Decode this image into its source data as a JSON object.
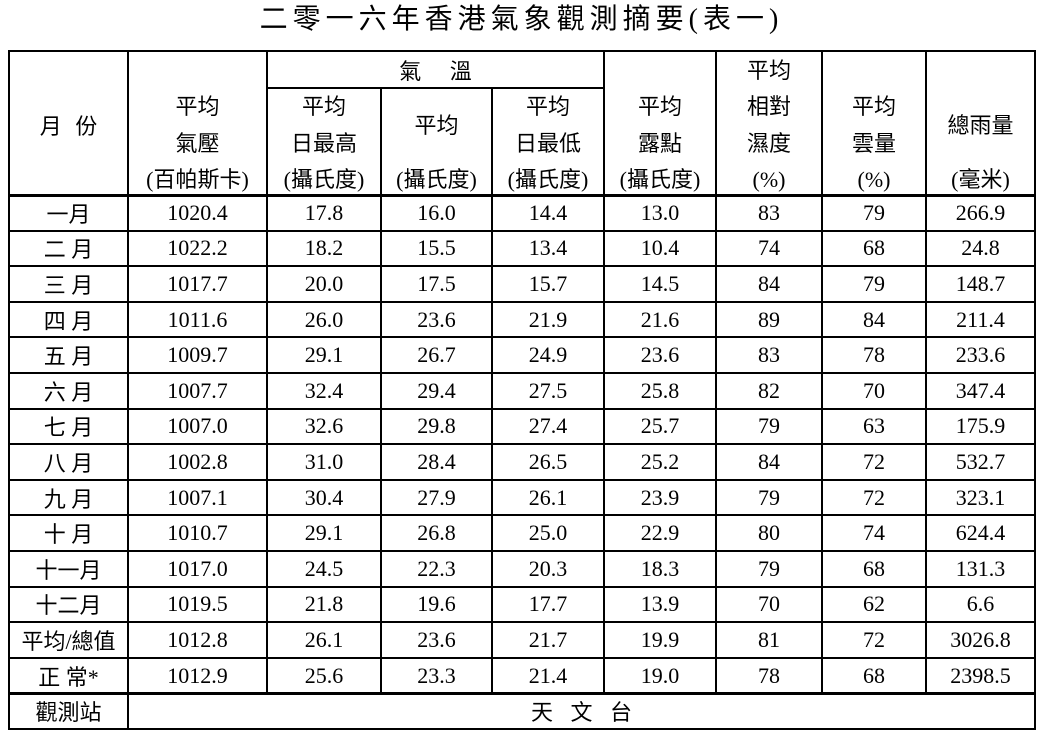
{
  "title": "二零一六年香港氣象觀測摘要(表一)",
  "header": {
    "month": "月 份",
    "pressure": {
      "l1": "平均",
      "l2": "氣壓",
      "l3": "(百帕斯卡)"
    },
    "temperature": "氣 溫",
    "temp_max": {
      "l1": "平均",
      "l2": "日最高",
      "l3": "(攝氏度)"
    },
    "temp_mean": {
      "l1": "平均",
      "l2": "(攝氏度)"
    },
    "temp_min": {
      "l1": "平均",
      "l2": "日最低",
      "l3": "(攝氏度)"
    },
    "dew_point": {
      "l1": "平均",
      "l2": "露點",
      "l3": "(攝氏度)"
    },
    "humidity": {
      "l1": "平均",
      "l2": "相對",
      "l3": "濕度",
      "l4": "(%)"
    },
    "cloud": {
      "l1": "平均",
      "l2": "雲量",
      "l3": "(%)"
    },
    "rainfall": {
      "l1": "總雨量",
      "l2": "(毫米)"
    }
  },
  "rows": [
    {
      "month": "一月",
      "pressure": "1020.4",
      "temp_max": "17.8",
      "temp_mean": "16.0",
      "temp_min": "14.4",
      "dew_point": "13.0",
      "humidity": "83",
      "cloud": "79",
      "rainfall": "266.9"
    },
    {
      "month": "二 月",
      "pressure": "1022.2",
      "temp_max": "18.2",
      "temp_mean": "15.5",
      "temp_min": "13.4",
      "dew_point": "10.4",
      "humidity": "74",
      "cloud": "68",
      "rainfall": "24.8"
    },
    {
      "month": "三 月",
      "pressure": "1017.7",
      "temp_max": "20.0",
      "temp_mean": "17.5",
      "temp_min": "15.7",
      "dew_point": "14.5",
      "humidity": "84",
      "cloud": "79",
      "rainfall": "148.7"
    },
    {
      "month": "四 月",
      "pressure": "1011.6",
      "temp_max": "26.0",
      "temp_mean": "23.6",
      "temp_min": "21.9",
      "dew_point": "21.6",
      "humidity": "89",
      "cloud": "84",
      "rainfall": "211.4"
    },
    {
      "month": "五 月",
      "pressure": "1009.7",
      "temp_max": "29.1",
      "temp_mean": "26.7",
      "temp_min": "24.9",
      "dew_point": "23.6",
      "humidity": "83",
      "cloud": "78",
      "rainfall": "233.6"
    },
    {
      "month": "六 月",
      "pressure": "1007.7",
      "temp_max": "32.4",
      "temp_mean": "29.4",
      "temp_min": "27.5",
      "dew_point": "25.8",
      "humidity": "82",
      "cloud": "70",
      "rainfall": "347.4"
    },
    {
      "month": "七 月",
      "pressure": "1007.0",
      "temp_max": "32.6",
      "temp_mean": "29.8",
      "temp_min": "27.4",
      "dew_point": "25.7",
      "humidity": "79",
      "cloud": "63",
      "rainfall": "175.9"
    },
    {
      "month": "八 月",
      "pressure": "1002.8",
      "temp_max": "31.0",
      "temp_mean": "28.4",
      "temp_min": "26.5",
      "dew_point": "25.2",
      "humidity": "84",
      "cloud": "72",
      "rainfall": "532.7"
    },
    {
      "month": "九 月",
      "pressure": "1007.1",
      "temp_max": "30.4",
      "temp_mean": "27.9",
      "temp_min": "26.1",
      "dew_point": "23.9",
      "humidity": "79",
      "cloud": "72",
      "rainfall": "323.1"
    },
    {
      "month": "十 月",
      "pressure": "1010.7",
      "temp_max": "29.1",
      "temp_mean": "26.8",
      "temp_min": "25.0",
      "dew_point": "22.9",
      "humidity": "80",
      "cloud": "74",
      "rainfall": "624.4"
    },
    {
      "month": "十一月",
      "pressure": "1017.0",
      "temp_max": "24.5",
      "temp_mean": "22.3",
      "temp_min": "20.3",
      "dew_point": "18.3",
      "humidity": "79",
      "cloud": "68",
      "rainfall": "131.3"
    },
    {
      "month": "十二月",
      "pressure": "1019.5",
      "temp_max": "21.8",
      "temp_mean": "19.6",
      "temp_min": "17.7",
      "dew_point": "13.9",
      "humidity": "70",
      "cloud": "62",
      "rainfall": "6.6"
    },
    {
      "month": "平均/總值",
      "pressure": "1012.8",
      "temp_max": "26.1",
      "temp_mean": "23.6",
      "temp_min": "21.7",
      "dew_point": "19.9",
      "humidity": "81",
      "cloud": "72",
      "rainfall": "3026.8"
    },
    {
      "month": "正 常*",
      "pressure": "1012.9",
      "temp_max": "25.6",
      "temp_mean": "23.3",
      "temp_min": "21.4",
      "dew_point": "19.0",
      "humidity": "78",
      "cloud": "68",
      "rainfall": "2398.5"
    }
  ],
  "station": {
    "label": "觀測站",
    "value": "天 文 台"
  }
}
